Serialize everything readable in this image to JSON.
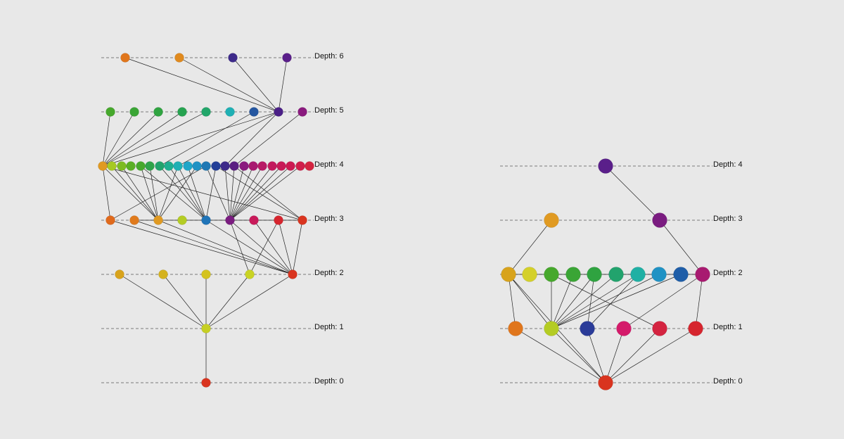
{
  "graphs": [
    {
      "id": "left",
      "levels": [
        {
          "depth": 0,
          "label": "Depth: 0"
        },
        {
          "depth": 1,
          "label": "Depth: 1"
        },
        {
          "depth": 2,
          "label": "Depth: 2"
        },
        {
          "depth": 3,
          "label": "Depth: 3"
        },
        {
          "depth": 4,
          "label": "Depth: 4"
        },
        {
          "depth": 5,
          "label": "Depth: 5"
        },
        {
          "depth": 6,
          "label": "Depth: 6"
        }
      ],
      "nodes": [
        {
          "id": "L0_0",
          "depth": 0,
          "slot": 0,
          "color": "#d9341f"
        },
        {
          "id": "L1_0",
          "depth": 1,
          "slot": 0,
          "color": "#c6cf23"
        },
        {
          "id": "L2_0",
          "depth": 2,
          "slot": 0,
          "color": "#d8a31c"
        },
        {
          "id": "L2_1",
          "depth": 2,
          "slot": 1,
          "color": "#d4b21e"
        },
        {
          "id": "L2_2",
          "depth": 2,
          "slot": 2,
          "color": "#d4c31f"
        },
        {
          "id": "L2_3",
          "depth": 2,
          "slot": 3,
          "color": "#c9d324"
        },
        {
          "id": "L2_4",
          "depth": 2,
          "slot": 4,
          "color": "#d9341f"
        },
        {
          "id": "L3_0",
          "depth": 3,
          "slot": 0,
          "color": "#e06a1c"
        },
        {
          "id": "L3_1",
          "depth": 3,
          "slot": 1,
          "color": "#e07a1c"
        },
        {
          "id": "L3_2",
          "depth": 3,
          "slot": 2,
          "color": "#e09a22"
        },
        {
          "id": "L3_3",
          "depth": 3,
          "slot": 3,
          "color": "#b4cc24"
        },
        {
          "id": "L3_4",
          "depth": 3,
          "slot": 4,
          "color": "#1f74b8"
        },
        {
          "id": "L3_5",
          "depth": 3,
          "slot": 5,
          "color": "#7a1c80"
        },
        {
          "id": "L3_6",
          "depth": 3,
          "slot": 6,
          "color": "#c81a5a"
        },
        {
          "id": "L3_7",
          "depth": 3,
          "slot": 7,
          "color": "#d6252e"
        },
        {
          "id": "L3_8",
          "depth": 3,
          "slot": 8,
          "color": "#d9341f"
        },
        {
          "id": "L4_0",
          "depth": 4,
          "slot": 0,
          "color": "#e09a22"
        },
        {
          "id": "L4_1",
          "depth": 4,
          "slot": 1,
          "color": "#a6c923"
        },
        {
          "id": "L4_2",
          "depth": 4,
          "slot": 2,
          "color": "#7dbb22"
        },
        {
          "id": "L4_3",
          "depth": 4,
          "slot": 3,
          "color": "#5aaf25"
        },
        {
          "id": "L4_4",
          "depth": 4,
          "slot": 4,
          "color": "#46a82c"
        },
        {
          "id": "L4_5",
          "depth": 4,
          "slot": 5,
          "color": "#2fa34a"
        },
        {
          "id": "L4_6",
          "depth": 4,
          "slot": 6,
          "color": "#22a36d"
        },
        {
          "id": "L4_7",
          "depth": 4,
          "slot": 7,
          "color": "#1fae90"
        },
        {
          "id": "L4_8",
          "depth": 4,
          "slot": 8,
          "color": "#1fb0b4"
        },
        {
          "id": "L4_9",
          "depth": 4,
          "slot": 9,
          "color": "#1fa6c8"
        },
        {
          "id": "L4_10",
          "depth": 4,
          "slot": 10,
          "color": "#1f92c4"
        },
        {
          "id": "L4_11",
          "depth": 4,
          "slot": 11,
          "color": "#1f78b4"
        },
        {
          "id": "L4_12",
          "depth": 4,
          "slot": 12,
          "color": "#233f98"
        },
        {
          "id": "L4_13",
          "depth": 4,
          "slot": 13,
          "color": "#3d2a8a"
        },
        {
          "id": "L4_14",
          "depth": 4,
          "slot": 14,
          "color": "#5a1f82"
        },
        {
          "id": "L4_15",
          "depth": 4,
          "slot": 15,
          "color": "#8a1a7e"
        },
        {
          "id": "L4_16",
          "depth": 4,
          "slot": 16,
          "color": "#a81a70"
        },
        {
          "id": "L4_17",
          "depth": 4,
          "slot": 17,
          "color": "#b81a66"
        },
        {
          "id": "L4_18",
          "depth": 4,
          "slot": 18,
          "color": "#c21a5e"
        },
        {
          "id": "L4_19",
          "depth": 4,
          "slot": 19,
          "color": "#c81a58"
        },
        {
          "id": "L4_20",
          "depth": 4,
          "slot": 20,
          "color": "#cc1a52"
        },
        {
          "id": "L4_21",
          "depth": 4,
          "slot": 21,
          "color": "#d01e4a"
        },
        {
          "id": "L4_22",
          "depth": 4,
          "slot": 22,
          "color": "#d42440"
        },
        {
          "id": "L5_0",
          "depth": 5,
          "slot": 0,
          "color": "#46a82c"
        },
        {
          "id": "L5_1",
          "depth": 5,
          "slot": 1,
          "color": "#3aa535"
        },
        {
          "id": "L5_2",
          "depth": 5,
          "slot": 2,
          "color": "#2fa340"
        },
        {
          "id": "L5_3",
          "depth": 5,
          "slot": 3,
          "color": "#26a350"
        },
        {
          "id": "L5_4",
          "depth": 5,
          "slot": 4,
          "color": "#22a66a"
        },
        {
          "id": "L5_5",
          "depth": 5,
          "slot": 5,
          "color": "#1fb0b4"
        },
        {
          "id": "L5_6",
          "depth": 5,
          "slot": 6,
          "color": "#2456a0"
        },
        {
          "id": "L5_7",
          "depth": 5,
          "slot": 7,
          "color": "#4a1f86"
        },
        {
          "id": "L5_8",
          "depth": 5,
          "slot": 8,
          "color": "#8a1a7e"
        },
        {
          "id": "L6_0",
          "depth": 6,
          "slot": 0,
          "color": "#e0761c"
        },
        {
          "id": "L6_1",
          "depth": 6,
          "slot": 1,
          "color": "#e08a1e"
        },
        {
          "id": "L6_2",
          "depth": 6,
          "slot": 2,
          "color": "#3d2a8a"
        },
        {
          "id": "L6_3",
          "depth": 6,
          "slot": 3,
          "color": "#5a1f8a"
        }
      ],
      "edges": [
        [
          "L0_0",
          "L1_0"
        ],
        [
          "L1_0",
          "L2_0"
        ],
        [
          "L1_0",
          "L2_1"
        ],
        [
          "L1_0",
          "L2_2"
        ],
        [
          "L1_0",
          "L2_3"
        ],
        [
          "L1_0",
          "L2_4"
        ],
        [
          "L2_4",
          "L3_0"
        ],
        [
          "L2_4",
          "L3_1"
        ],
        [
          "L2_4",
          "L3_2"
        ],
        [
          "L2_4",
          "L3_4"
        ],
        [
          "L2_4",
          "L3_5"
        ],
        [
          "L2_4",
          "L3_6"
        ],
        [
          "L2_4",
          "L3_7"
        ],
        [
          "L2_4",
          "L3_8"
        ],
        [
          "L2_3",
          "L3_5"
        ],
        [
          "L2_3",
          "L3_7"
        ],
        [
          "L3_0",
          "L4_0"
        ],
        [
          "L3_0",
          "L4_11"
        ],
        [
          "L3_1",
          "L3_8"
        ],
        [
          "L3_2",
          "L4_0"
        ],
        [
          "L3_2",
          "L4_1"
        ],
        [
          "L3_2",
          "L4_2"
        ],
        [
          "L3_2",
          "L4_4"
        ],
        [
          "L3_2",
          "L4_5"
        ],
        [
          "L3_2",
          "L4_10"
        ],
        [
          "L3_2",
          "L4_8"
        ],
        [
          "L3_4",
          "L4_4"
        ],
        [
          "L3_4",
          "L4_6"
        ],
        [
          "L3_4",
          "L4_7"
        ],
        [
          "L3_4",
          "L4_8"
        ],
        [
          "L3_4",
          "L4_9"
        ],
        [
          "L3_4",
          "L4_12"
        ],
        [
          "L3_5",
          "L4_11"
        ],
        [
          "L3_5",
          "L4_13"
        ],
        [
          "L3_5",
          "L4_14"
        ],
        [
          "L3_5",
          "L4_15"
        ],
        [
          "L3_5",
          "L4_16"
        ],
        [
          "L3_5",
          "L4_17"
        ],
        [
          "L3_5",
          "L4_18"
        ],
        [
          "L3_5",
          "L4_19"
        ],
        [
          "L3_5",
          "L4_20"
        ],
        [
          "L3_5",
          "L4_21"
        ],
        [
          "L3_8",
          "L4_0"
        ],
        [
          "L3_8",
          "L4_12"
        ],
        [
          "L3_8",
          "L4_14"
        ],
        [
          "L4_0",
          "L5_0"
        ],
        [
          "L4_0",
          "L5_1"
        ],
        [
          "L4_0",
          "L5_2"
        ],
        [
          "L4_0",
          "L5_3"
        ],
        [
          "L4_0",
          "L5_4"
        ],
        [
          "L4_0",
          "L5_7"
        ],
        [
          "L4_6",
          "L5_6"
        ],
        [
          "L4_8",
          "L5_7"
        ],
        [
          "L4_13",
          "L5_7"
        ],
        [
          "L4_14",
          "L5_8"
        ],
        [
          "L5_7",
          "L6_0"
        ],
        [
          "L5_7",
          "L6_1"
        ],
        [
          "L5_7",
          "L6_2"
        ],
        [
          "L5_7",
          "L6_3"
        ]
      ]
    },
    {
      "id": "right",
      "levels": [
        {
          "depth": 0,
          "label": "Depth: 0"
        },
        {
          "depth": 1,
          "label": "Depth: 1"
        },
        {
          "depth": 2,
          "label": "Depth: 2"
        },
        {
          "depth": 3,
          "label": "Depth: 3"
        },
        {
          "depth": 4,
          "label": "Depth: 4"
        }
      ],
      "nodes": [
        {
          "id": "R0_0",
          "depth": 0,
          "slot": 0,
          "color": "#d9341f"
        },
        {
          "id": "R1_0",
          "depth": 1,
          "slot": 0,
          "color": "#e0761c"
        },
        {
          "id": "R1_1",
          "depth": 1,
          "slot": 1,
          "color": "#b4cc24"
        },
        {
          "id": "R1_2",
          "depth": 1,
          "slot": 2,
          "color": "#2a3b98"
        },
        {
          "id": "R1_3",
          "depth": 1,
          "slot": 3,
          "color": "#d41a6a"
        },
        {
          "id": "R1_4",
          "depth": 1,
          "slot": 4,
          "color": "#d42440"
        },
        {
          "id": "R1_5",
          "depth": 1,
          "slot": 5,
          "color": "#d6252e"
        },
        {
          "id": "R2_0",
          "depth": 2,
          "slot": 0,
          "color": "#d8a31c"
        },
        {
          "id": "R2_1",
          "depth": 2,
          "slot": 1,
          "color": "#d4d02a"
        },
        {
          "id": "R2_2",
          "depth": 2,
          "slot": 2,
          "color": "#46a82c"
        },
        {
          "id": "R2_3",
          "depth": 2,
          "slot": 3,
          "color": "#3aa535"
        },
        {
          "id": "R2_4",
          "depth": 2,
          "slot": 4,
          "color": "#2fa340"
        },
        {
          "id": "R2_5",
          "depth": 2,
          "slot": 5,
          "color": "#22a36d"
        },
        {
          "id": "R2_6",
          "depth": 2,
          "slot": 6,
          "color": "#1fb0a4"
        },
        {
          "id": "R2_7",
          "depth": 2,
          "slot": 7,
          "color": "#1f92c4"
        },
        {
          "id": "R2_8",
          "depth": 2,
          "slot": 8,
          "color": "#1f5ea8"
        },
        {
          "id": "R2_9",
          "depth": 2,
          "slot": 9,
          "color": "#a81a70"
        },
        {
          "id": "R3_0",
          "depth": 3,
          "slot": 0,
          "color": "#e09a22"
        },
        {
          "id": "R3_1",
          "depth": 3,
          "slot": 1,
          "color": "#7a1c80"
        },
        {
          "id": "R4_0",
          "depth": 4,
          "slot": 0,
          "color": "#5a1f8a"
        }
      ],
      "edges": [
        [
          "R0_0",
          "R1_0"
        ],
        [
          "R0_0",
          "R1_1"
        ],
        [
          "R0_0",
          "R1_2"
        ],
        [
          "R0_0",
          "R1_3"
        ],
        [
          "R0_0",
          "R1_4"
        ],
        [
          "R0_0",
          "R1_5"
        ],
        [
          "R0_0",
          "R2_0"
        ],
        [
          "R1_0",
          "R2_0"
        ],
        [
          "R1_1",
          "R2_0"
        ],
        [
          "R1_1",
          "R2_2"
        ],
        [
          "R1_1",
          "R2_3"
        ],
        [
          "R1_1",
          "R2_4"
        ],
        [
          "R1_1",
          "R2_5"
        ],
        [
          "R1_1",
          "R2_6"
        ],
        [
          "R1_1",
          "R2_7"
        ],
        [
          "R1_1",
          "R2_8"
        ],
        [
          "R1_2",
          "R2_4"
        ],
        [
          "R1_2",
          "R2_6"
        ],
        [
          "R1_3",
          "R2_9"
        ],
        [
          "R1_4",
          "R2_2"
        ],
        [
          "R1_5",
          "R2_9"
        ],
        [
          "R2_0",
          "R2_9"
        ],
        [
          "R2_0",
          "R3_0"
        ],
        [
          "R2_9",
          "R3_1"
        ],
        [
          "R3_1",
          "R4_0"
        ]
      ]
    }
  ]
}
